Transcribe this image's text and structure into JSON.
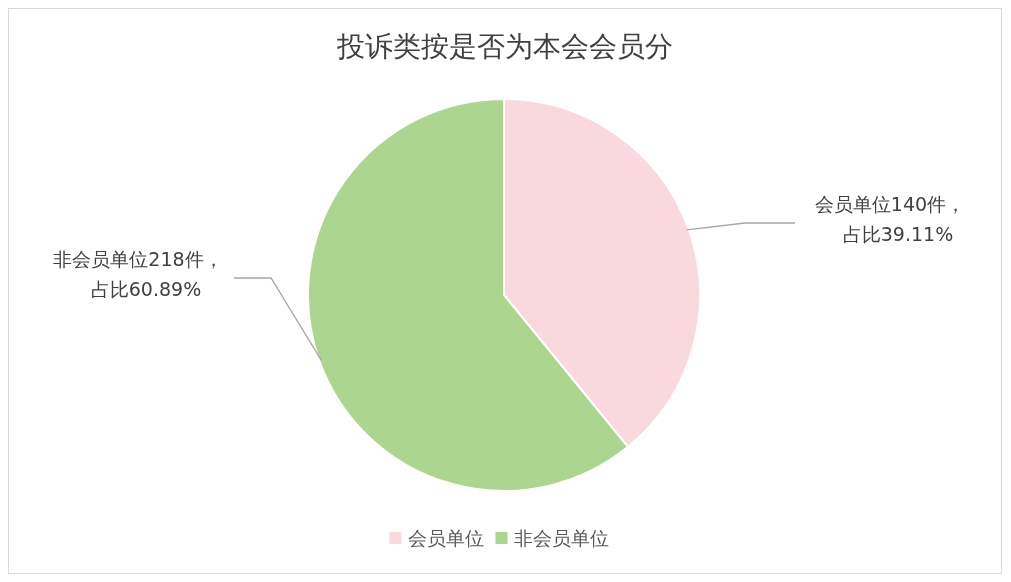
{
  "chart_data": {
    "type": "pie",
    "title": "投诉类按是否为本会会员分",
    "categories": [
      "会员单位",
      "非会员单位"
    ],
    "values": [
      140,
      218
    ],
    "colors": [
      "#f9d9de",
      "#acd68f"
    ],
    "value_labels": [
      "会员单位140件，占比39.11%",
      "非会员单位218件，占比60.89%"
    ],
    "legend": "bottom"
  }
}
